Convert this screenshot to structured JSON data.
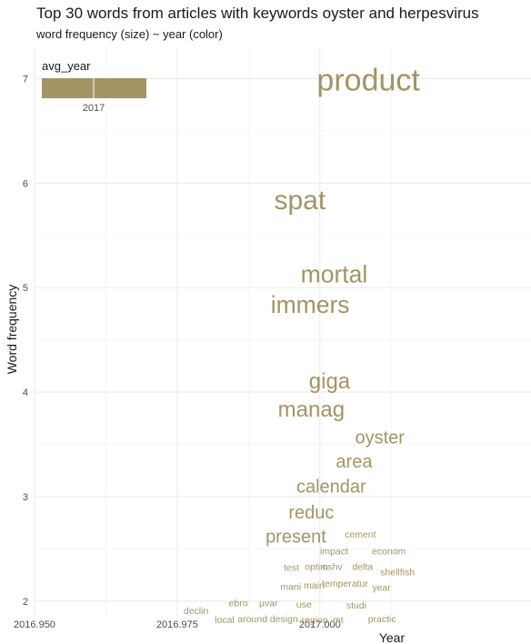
{
  "chart_data": {
    "type": "scatter",
    "title": "Top 30 words from  articles with keywords oyster and herpesvirus",
    "subtitle": "word frequency (size) ~ year (color)",
    "xlabel": "Year",
    "ylabel": "Word frequency",
    "xlim": [
      2016.95,
      2017.037
    ],
    "ylim": [
      1.85,
      7.3
    ],
    "x_ticks": [
      2016.95,
      2016.975,
      2017.0
    ],
    "x_tick_labels": [
      "2016.950",
      "2016.975",
      "2017.000"
    ],
    "y_ticks": [
      2,
      3,
      4,
      5,
      6,
      7
    ],
    "y_tick_labels": [
      "2",
      "3",
      "4",
      "5",
      "6",
      "7"
    ],
    "grid": true,
    "word_color": "#a39465",
    "legend": {
      "title": "avg_year",
      "label": "2017",
      "color": "#a39465",
      "placement": "top-left"
    },
    "words": [
      {
        "word": "product",
        "x": 2017.0085,
        "y": 6.99,
        "freq": 7
      },
      {
        "word": "spat",
        "x": 2016.9965,
        "y": 5.84,
        "freq": 6
      },
      {
        "word": "mortal",
        "x": 2017.0025,
        "y": 5.13,
        "freq": 5
      },
      {
        "word": "immers",
        "x": 2016.9983,
        "y": 4.84,
        "freq": 5
      },
      {
        "word": "giga",
        "x": 2017.0017,
        "y": 4.11,
        "freq": 4
      },
      {
        "word": "manag",
        "x": 2016.9985,
        "y": 3.84,
        "freq": 4
      },
      {
        "word": "oyster",
        "x": 2017.0105,
        "y": 3.57,
        "freq": 3
      },
      {
        "word": "area",
        "x": 2017.006,
        "y": 3.34,
        "freq": 3
      },
      {
        "word": "calendar",
        "x": 2017.002,
        "y": 3.1,
        "freq": 3
      },
      {
        "word": "reduc",
        "x": 2016.9985,
        "y": 2.85,
        "freq": 3
      },
      {
        "word": "present",
        "x": 2016.9958,
        "y": 2.62,
        "freq": 3
      },
      {
        "word": "cement",
        "x": 2017.0071,
        "y": 2.64,
        "freq": 2
      },
      {
        "word": "impact",
        "x": 2017.0025,
        "y": 2.48,
        "freq": 2
      },
      {
        "word": "econom",
        "x": 2017.0121,
        "y": 2.48,
        "freq": 2
      },
      {
        "word": "test",
        "x": 2016.995,
        "y": 2.32,
        "freq": 2
      },
      {
        "word": "optim",
        "x": 2016.9994,
        "y": 2.33,
        "freq": 2
      },
      {
        "word": "oshv",
        "x": 2017.0022,
        "y": 2.33,
        "freq": 2
      },
      {
        "word": "delta",
        "x": 2017.0075,
        "y": 2.33,
        "freq": 2
      },
      {
        "word": "shellfish",
        "x": 2017.0136,
        "y": 2.28,
        "freq": 2
      },
      {
        "word": "mani",
        "x": 2016.9949,
        "y": 2.14,
        "freq": 2
      },
      {
        "word": "main",
        "x": 2016.999,
        "y": 2.15,
        "freq": 2
      },
      {
        "word": "temperatur",
        "x": 2017.0044,
        "y": 2.17,
        "freq": 2
      },
      {
        "word": "year",
        "x": 2017.0108,
        "y": 2.13,
        "freq": 2
      },
      {
        "word": "ebro",
        "x": 2016.9857,
        "y": 1.98,
        "freq": 2
      },
      {
        "word": "µvar",
        "x": 2016.991,
        "y": 1.98,
        "freq": 2
      },
      {
        "word": "use",
        "x": 2016.9972,
        "y": 1.97,
        "freq": 2
      },
      {
        "word": "studi",
        "x": 2017.0064,
        "y": 1.96,
        "freq": 2
      },
      {
        "word": "declin",
        "x": 2016.9783,
        "y": 1.91,
        "freq": 2
      },
      {
        "word": "local",
        "x": 2016.9833,
        "y": 1.82,
        "freq": 2
      },
      {
        "word": "around",
        "x": 2016.9882,
        "y": 1.83,
        "freq": 2
      },
      {
        "word": "design",
        "x": 2016.9937,
        "y": 1.83,
        "freq": 2
      },
      {
        "word": "region",
        "x": 2016.9991,
        "y": 1.82,
        "freq": 2
      },
      {
        "word": "mt",
        "x": 2017.0032,
        "y": 1.82,
        "freq": 2
      },
      {
        "word": "practic",
        "x": 2017.0109,
        "y": 1.83,
        "freq": 2
      }
    ]
  }
}
